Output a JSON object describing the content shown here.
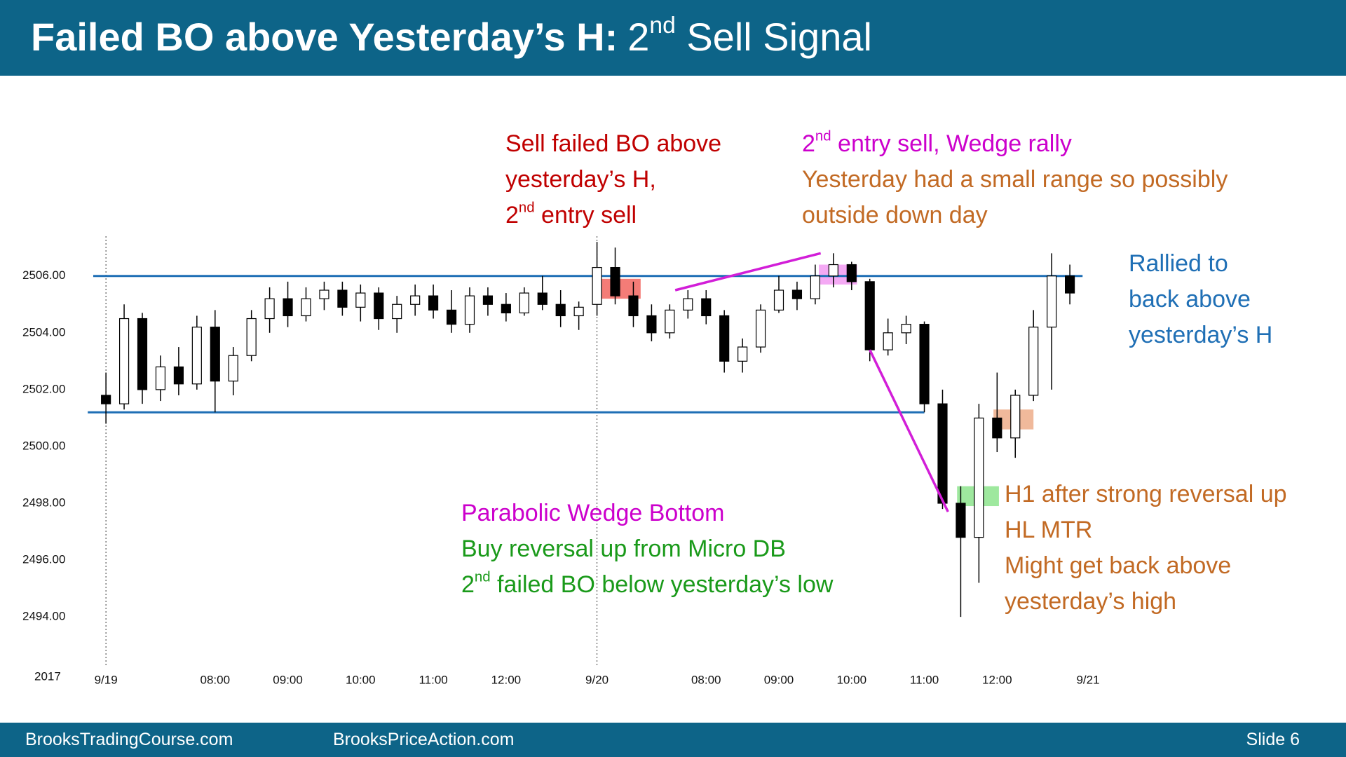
{
  "header": {
    "bold": "Failed BO above Yesterday’s H:",
    "pre": "2",
    "sup": "nd",
    "post": " Sell Signal"
  },
  "footer": {
    "left": "BrooksTradingCourse.com",
    "middle": "BrooksPriceAction.com",
    "slide": "Slide 6"
  },
  "chart_data": {
    "type": "candlestick",
    "year_label": "2017",
    "x": [
      0,
      1,
      2,
      3,
      4,
      5,
      6,
      7,
      8,
      9,
      10,
      11,
      12,
      13,
      14,
      15,
      16,
      17,
      18,
      19,
      20,
      21,
      22,
      23,
      24,
      25,
      26,
      27,
      28,
      29,
      30,
      31,
      32,
      33,
      34,
      35,
      36,
      37,
      38,
      39,
      40,
      41,
      42,
      43,
      44,
      45,
      46,
      47,
      48,
      49,
      50,
      51,
      52,
      53
    ],
    "candles": [
      [
        2501.8,
        2502.6,
        2500.8,
        2501.5
      ],
      [
        2501.5,
        2505.0,
        2501.3,
        2504.5
      ],
      [
        2504.5,
        2504.7,
        2501.5,
        2502.0
      ],
      [
        2502.0,
        2503.2,
        2501.6,
        2502.8
      ],
      [
        2502.8,
        2503.5,
        2501.8,
        2502.2
      ],
      [
        2502.2,
        2504.6,
        2502.0,
        2504.2
      ],
      [
        2504.2,
        2504.8,
        2501.2,
        2502.3
      ],
      [
        2502.3,
        2503.5,
        2501.8,
        2503.2
      ],
      [
        2503.2,
        2504.8,
        2503.0,
        2504.5
      ],
      [
        2504.5,
        2505.6,
        2504.0,
        2505.2
      ],
      [
        2505.2,
        2505.8,
        2504.2,
        2504.6
      ],
      [
        2504.6,
        2505.6,
        2504.4,
        2505.2
      ],
      [
        2505.2,
        2505.8,
        2504.8,
        2505.5
      ],
      [
        2505.5,
        2505.8,
        2504.6,
        2504.9
      ],
      [
        2504.9,
        2505.7,
        2504.4,
        2505.4
      ],
      [
        2505.4,
        2505.6,
        2504.1,
        2504.5
      ],
      [
        2504.5,
        2505.3,
        2504.0,
        2505.0
      ],
      [
        2505.0,
        2505.7,
        2504.6,
        2505.3
      ],
      [
        2505.3,
        2505.7,
        2504.5,
        2504.8
      ],
      [
        2504.8,
        2505.5,
        2504.0,
        2504.3
      ],
      [
        2504.3,
        2505.6,
        2504.0,
        2505.3
      ],
      [
        2505.3,
        2505.6,
        2504.6,
        2505.0
      ],
      [
        2505.0,
        2505.4,
        2504.4,
        2504.7
      ],
      [
        2504.7,
        2505.6,
        2504.6,
        2505.4
      ],
      [
        2505.4,
        2506.0,
        2504.8,
        2505.0
      ],
      [
        2505.0,
        2505.5,
        2504.2,
        2504.6
      ],
      [
        2504.6,
        2505.1,
        2504.1,
        2504.9
      ],
      [
        2505.0,
        2507.2,
        2504.6,
        2506.3
      ],
      [
        2506.3,
        2507.0,
        2505.0,
        2505.3
      ],
      [
        2505.3,
        2505.8,
        2504.2,
        2504.6
      ],
      [
        2504.6,
        2505.0,
        2503.7,
        2504.0
      ],
      [
        2504.0,
        2505.0,
        2503.8,
        2504.8
      ],
      [
        2504.8,
        2505.5,
        2504.5,
        2505.2
      ],
      [
        2505.2,
        2505.5,
        2504.3,
        2504.6
      ],
      [
        2504.6,
        2504.8,
        2502.6,
        2503.0
      ],
      [
        2503.0,
        2503.8,
        2502.6,
        2503.5
      ],
      [
        2503.5,
        2505.0,
        2503.3,
        2504.8
      ],
      [
        2504.8,
        2506.0,
        2504.7,
        2505.5
      ],
      [
        2505.5,
        2505.8,
        2504.8,
        2505.2
      ],
      [
        2505.2,
        2506.4,
        2505.0,
        2506.0
      ],
      [
        2506.0,
        2506.8,
        2505.6,
        2506.4
      ],
      [
        2506.4,
        2506.5,
        2505.5,
        2505.8
      ],
      [
        2505.8,
        2505.9,
        2503.0,
        2503.4
      ],
      [
        2503.4,
        2504.5,
        2503.2,
        2504.0
      ],
      [
        2504.0,
        2504.6,
        2503.6,
        2504.3
      ],
      [
        2504.3,
        2504.4,
        2501.2,
        2501.5
      ],
      [
        2501.5,
        2502.0,
        2497.8,
        2498.0
      ],
      [
        2498.0,
        2498.6,
        2494.0,
        2496.8
      ],
      [
        2496.8,
        2501.5,
        2495.2,
        2501.0
      ],
      [
        2501.0,
        2502.6,
        2499.8,
        2500.3
      ],
      [
        2500.3,
        2502.0,
        2499.6,
        2501.8
      ],
      [
        2501.8,
        2504.8,
        2501.6,
        2504.2
      ],
      [
        2504.2,
        2506.8,
        2502.0,
        2506.0
      ],
      [
        2506.0,
        2506.4,
        2505.0,
        2505.4
      ]
    ],
    "up_color": "#ffffff",
    "down_color": "#000000",
    "xlim": [
      -1.2,
      54.5
    ],
    "xticks": [
      {
        "value": 0,
        "label": "9/19"
      },
      {
        "value": 6,
        "label": "08:00"
      },
      {
        "value": 10,
        "label": "09:00"
      },
      {
        "value": 14,
        "label": "10:00"
      },
      {
        "value": 18,
        "label": "11:00"
      },
      {
        "value": 22,
        "label": "12:00"
      },
      {
        "value": 27,
        "label": "9/20"
      },
      {
        "value": 33,
        "label": "08:00"
      },
      {
        "value": 37,
        "label": "09:00"
      },
      {
        "value": 41,
        "label": "10:00"
      },
      {
        "value": 45,
        "label": "11:00"
      },
      {
        "value": 49,
        "label": "12:00"
      },
      {
        "value": 54,
        "label": "9/21"
      }
    ],
    "session_starts": [
      0,
      27
    ],
    "ylim": [
      2492.3,
      2507.4
    ],
    "yticks": [
      {
        "value": 2494,
        "label": "2494.00"
      },
      {
        "value": 2496,
        "label": "2496.00"
      },
      {
        "value": 2498,
        "label": "2498.00"
      },
      {
        "value": 2500,
        "label": "2500.00"
      },
      {
        "value": 2502,
        "label": "2502.00"
      },
      {
        "value": 2504,
        "label": "2504.00"
      },
      {
        "value": 2506,
        "label": "2506.00"
      }
    ],
    "levels": [
      {
        "value": 2506,
        "from": -0.7,
        "to": 53.7,
        "color": "#1f6fb5"
      },
      {
        "value": 2501.2,
        "from": -1,
        "to": 45,
        "color": "#1f6fb5"
      }
    ],
    "trend_lines": [
      {
        "x": [
          31.3,
          39.3
        ],
        "y": [
          2505.5,
          2506.8
        ],
        "color": "#d21ed8"
      },
      {
        "x": [
          42.0,
          46.3
        ],
        "y": [
          2503.4,
          2497.7
        ],
        "color": "#d21ed8"
      }
    ],
    "highlights": [
      {
        "x": [
          27.2,
          29.4
        ],
        "y": [
          2505.2,
          2505.9
        ],
        "color": "#f0504a"
      },
      {
        "x": [
          39.2,
          41.3
        ],
        "y": [
          2505.7,
          2506.4
        ],
        "color": "#f08cf0"
      },
      {
        "x": [
          46.8,
          49.1
        ],
        "y": [
          2497.9,
          2498.6
        ],
        "color": "#7ee07e"
      },
      {
        "x": [
          48.8,
          51.0
        ],
        "y": [
          2500.6,
          2501.3
        ],
        "color": "#eba27a"
      }
    ],
    "annotations": [
      {
        "color": "#c00000",
        "lines": [
          {
            "text": "Sell failed BO above"
          },
          {
            "text": "yesterday’s H,"
          },
          {
            "pre": "2",
            "sup": "nd",
            "post": " entry sell"
          }
        ]
      },
      {
        "color": "#cc00cc",
        "lines": [
          {
            "pre": "2",
            "sup": "nd",
            "post": " entry sell, Wedge rally"
          }
        ]
      },
      {
        "color": "#c26a24",
        "lines": [
          {
            "text": "Yesterday had a small range so possibly"
          },
          {
            "text": "outside down day"
          }
        ]
      },
      {
        "color": "#1f6fb5",
        "lines": [
          {
            "text": "Rallied to"
          },
          {
            "text": "back above"
          },
          {
            "text": "yesterday’s H"
          }
        ]
      },
      {
        "color": "#cc00cc",
        "lines": [
          {
            "text": "Parabolic Wedge Bottom"
          }
        ]
      },
      {
        "color": "#1a9a1a",
        "lines": [
          {
            "text": "Buy reversal up from Micro DB"
          },
          {
            "pre": "2",
            "sup": "nd",
            "post": " failed BO below yesterday’s low"
          }
        ]
      },
      {
        "color": "#c26a24",
        "lines": [
          {
            "text": "H1 after strong reversal up"
          },
          {
            "text": "HL MTR"
          },
          {
            "text": "Might get back above"
          },
          {
            "text": "yesterday’s high"
          }
        ]
      }
    ]
  }
}
